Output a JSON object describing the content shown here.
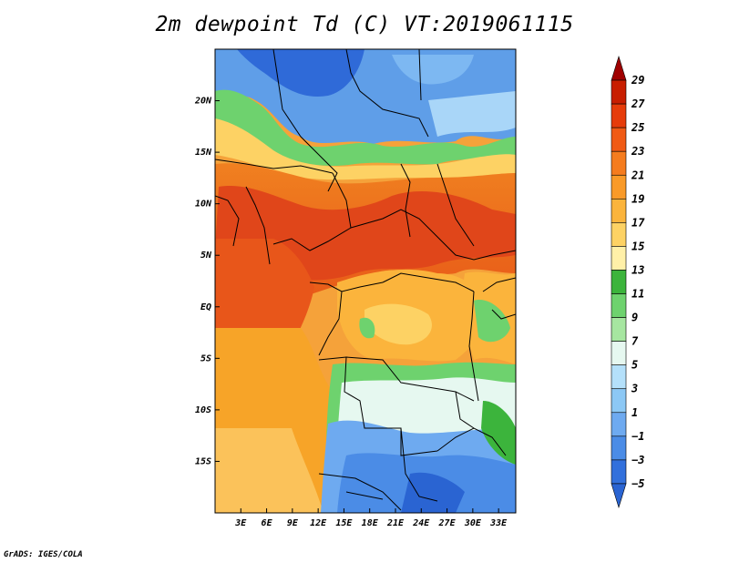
{
  "title": "2m dewpoint Td (C) VT:2019061115",
  "credit": "GrADS: IGES/COLA",
  "map": {
    "lat_range": [
      -20,
      25
    ],
    "lon_range": [
      0,
      35
    ],
    "lat_ticks": [
      "20N",
      "15N",
      "10N",
      "5N",
      "EQ",
      "5S",
      "10S",
      "15S"
    ],
    "lon_ticks": [
      "3E",
      "6E",
      "9E",
      "12E",
      "15E",
      "18E",
      "21E",
      "24E",
      "27E",
      "30E",
      "33E"
    ]
  },
  "colorbar": {
    "units": "C",
    "labels": [
      "29",
      "27",
      "25",
      "23",
      "21",
      "19",
      "17",
      "15",
      "13",
      "11",
      "9",
      "7",
      "5",
      "3",
      "1",
      "−1",
      "−3",
      "−5"
    ],
    "colors": [
      "#a00000",
      "#c81e00",
      "#e63c0a",
      "#f05a14",
      "#f57c1e",
      "#f99a28",
      "#fbb43c",
      "#fdd264",
      "#fff0a8",
      "#3cb43c",
      "#6ed26e",
      "#a6e6a0",
      "#e6f8f0",
      "#b4e0fa",
      "#8cc8f5",
      "#6eaaf0",
      "#4b8ce6",
      "#3270dc",
      "#2a64d2"
    ]
  }
}
